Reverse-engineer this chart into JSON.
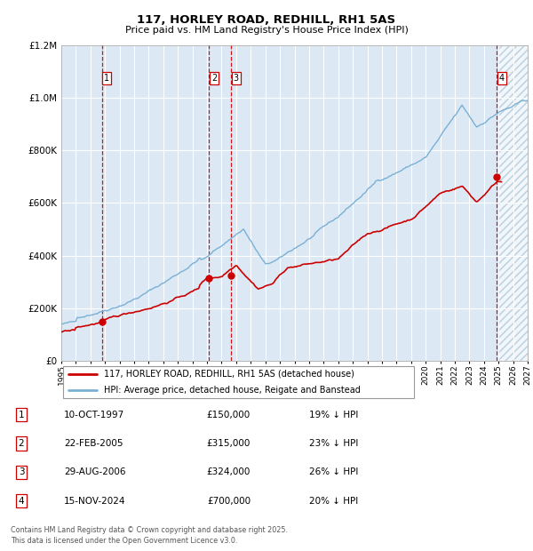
{
  "title": "117, HORLEY ROAD, REDHILL, RH1 5AS",
  "subtitle": "Price paid vs. HM Land Registry's House Price Index (HPI)",
  "footer": "Contains HM Land Registry data © Crown copyright and database right 2025.\nThis data is licensed under the Open Government Licence v3.0.",
  "legend_line1": "117, HORLEY ROAD, REDHILL, RH1 5AS (detached house)",
  "legend_line2": "HPI: Average price, detached house, Reigate and Banstead",
  "transactions": [
    {
      "num": 1,
      "date": "10-OCT-1997",
      "price": 150000,
      "hpi_rel": "19% ↓ HPI",
      "year": 1997.78
    },
    {
      "num": 2,
      "date": "22-FEB-2005",
      "price": 315000,
      "hpi_rel": "23% ↓ HPI",
      "year": 2005.14
    },
    {
      "num": 3,
      "date": "29-AUG-2006",
      "price": 324000,
      "hpi_rel": "26% ↓ HPI",
      "year": 2006.66
    },
    {
      "num": 4,
      "date": "15-NOV-2024",
      "price": 700000,
      "hpi_rel": "20% ↓ HPI",
      "year": 2024.88
    }
  ],
  "table_rows": [
    {
      "num": "1",
      "date": "10-OCT-1997",
      "price": "£150,000",
      "hpi_rel": "19% ↓ HPI"
    },
    {
      "num": "2",
      "date": "22-FEB-2005",
      "price": "£315,000",
      "hpi_rel": "23% ↓ HPI"
    },
    {
      "num": "3",
      "date": "29-AUG-2006",
      "price": "£324,000",
      "hpi_rel": "26% ↓ HPI"
    },
    {
      "num": "4",
      "date": "15-NOV-2024",
      "price": "£700,000",
      "hpi_rel": "20% ↓ HPI"
    }
  ],
  "ylim": [
    0,
    1200000
  ],
  "xlim_start": 1995.0,
  "xlim_end": 2027.0,
  "forecast_start": 2025.0,
  "bg_color": "#dce9f5",
  "grid_color": "#ffffff",
  "red_line_color": "#cc0000",
  "blue_line_color": "#7ab0d4",
  "vline_color": "#cc0000",
  "marker_color": "#cc0000",
  "hatch_color": "#b8cfe0"
}
